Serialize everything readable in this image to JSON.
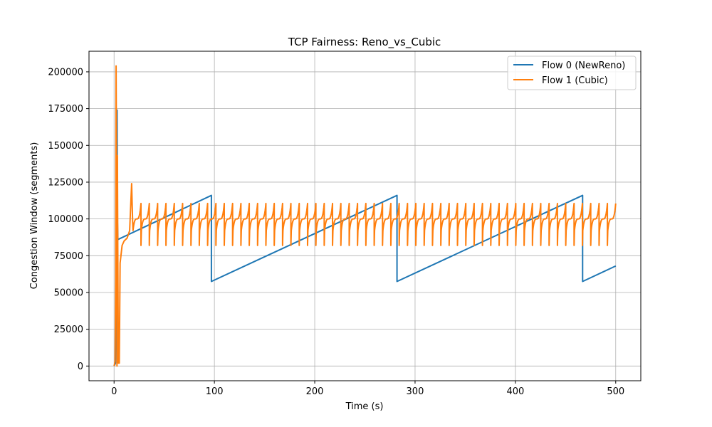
{
  "chart_data": {
    "type": "line",
    "title": "TCP Fairness: Reno_vs_Cubic",
    "xlabel": "Time (s)",
    "ylabel": "Congestion Window (segments)",
    "xlim": [
      -25,
      525
    ],
    "ylim": [
      -10000,
      214000
    ],
    "xticks": [
      0,
      100,
      200,
      300,
      400,
      500
    ],
    "yticks": [
      0,
      25000,
      50000,
      75000,
      100000,
      125000,
      150000,
      175000,
      200000
    ],
    "grid": true,
    "legend_position": "top-right",
    "series": [
      {
        "name": "Flow 0 (NewReno)",
        "color": "#1f77b4",
        "pattern": "aimd-sawtooth",
        "points": [
          [
            0,
            0
          ],
          [
            1.5,
            2000
          ],
          [
            2.2,
            60000
          ],
          [
            2.6,
            140000
          ],
          [
            3.0,
            174000
          ],
          [
            3.3,
            100000
          ],
          [
            3.8,
            86000
          ],
          [
            97,
            116000
          ],
          [
            97,
            57500
          ],
          [
            282,
            116000
          ],
          [
            282,
            57500
          ],
          [
            467,
            116000
          ],
          [
            467,
            57500
          ],
          [
            500,
            68000
          ]
        ]
      },
      {
        "name": "Flow 1 (Cubic)",
        "color": "#ff7f0e",
        "pattern": "cubic-oscillation",
        "startup": [
          [
            0,
            0
          ],
          [
            1,
            3000
          ],
          [
            1.6,
            60000
          ],
          [
            2.0,
            204000
          ],
          [
            2.4,
            140000
          ],
          [
            2.9,
            0
          ],
          [
            3.3,
            143000
          ],
          [
            3.7,
            80000
          ],
          [
            4.3,
            2000
          ],
          [
            5.2,
            2000
          ],
          [
            6,
            70000
          ],
          [
            8,
            82000
          ],
          [
            10,
            85000
          ],
          [
            13,
            87000
          ],
          [
            15.5,
            92000
          ],
          [
            17.5,
            124000
          ],
          [
            18.5,
            98000
          ]
        ],
        "steady_state": {
          "start_x": 18.5,
          "end_x": 500,
          "period": 8.3,
          "min": 82000,
          "plateau": 100000,
          "peak": 121000
        }
      }
    ]
  }
}
